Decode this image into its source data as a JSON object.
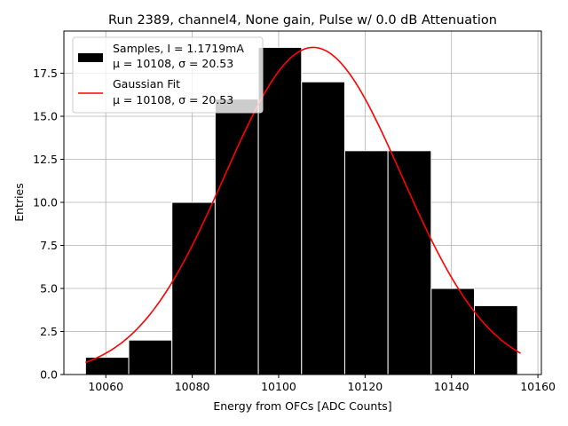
{
  "chart_data": {
    "type": "bar",
    "title": "Run 2389, channel4, None gain, Pulse w/ 0.0 dB Attenuation",
    "xlabel": "Energy from OFCs [ADC Counts]",
    "ylabel": "Entries",
    "xlim": [
      10050.3,
      10160.8
    ],
    "ylim": [
      0,
      19.95
    ],
    "xticks": [
      10060,
      10080,
      10100,
      10120,
      10140,
      10160
    ],
    "xtick_labels": [
      "10060",
      "10080",
      "10100",
      "10120",
      "10140",
      "10160"
    ],
    "yticks": [
      0.0,
      2.5,
      5.0,
      7.5,
      10.0,
      12.5,
      15.0,
      17.5
    ],
    "ytick_labels": [
      "0.0",
      "2.5",
      "5.0",
      "7.5",
      "10.0",
      "12.5",
      "15.0",
      "17.5"
    ],
    "grid": true,
    "legend_position": "upper-left",
    "histogram": {
      "name": "Samples, I = 1.1719mA",
      "stats_label": "μ = 10108, σ = 20.53",
      "color": "#000000",
      "edge_color": "#ffffff",
      "bin_edges": [
        10055.3,
        10065.3,
        10075.3,
        10085.3,
        10095.3,
        10105.3,
        10115.3,
        10125.3,
        10135.3,
        10145.3,
        10155.3
      ],
      "counts": [
        1,
        2,
        10,
        16,
        19,
        17,
        13,
        13,
        5,
        4
      ]
    },
    "fit": {
      "name": "Gaussian Fit",
      "stats_label": "μ = 10108, σ = 20.53",
      "color": "#ff0000",
      "mu": 10108,
      "sigma": 20.53,
      "amplitude": 19,
      "x_range": [
        10055.3,
        10156
      ]
    }
  }
}
